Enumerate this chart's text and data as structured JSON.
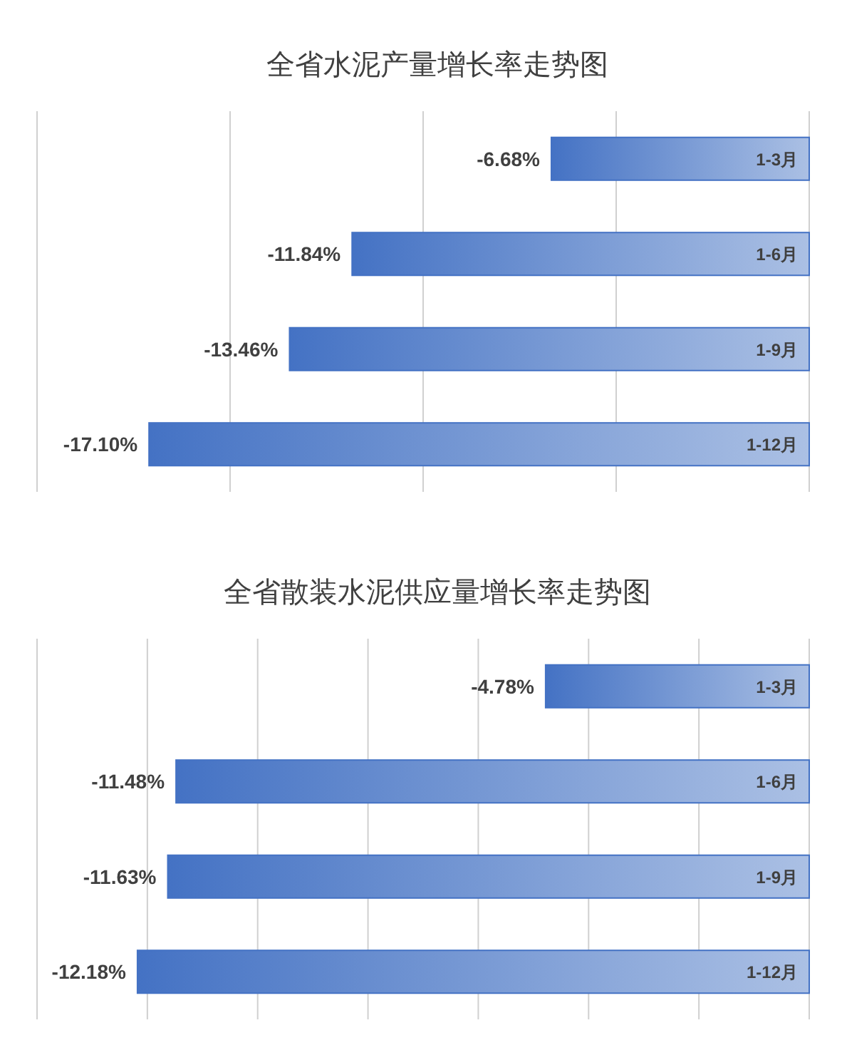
{
  "chart_data": [
    {
      "type": "bar",
      "orientation": "horizontal",
      "title": "全省水泥产量增长率走势图",
      "categories": [
        "1-3月",
        "1-6月",
        "1-9月",
        "1-12月"
      ],
      "values": [
        -6.68,
        -11.84,
        -13.46,
        -17.1
      ],
      "value_labels": [
        "-6.68%",
        "-11.84%",
        "-13.46%",
        "-17.10%"
      ],
      "color": "#4472c4",
      "xlim": [
        -20,
        0
      ],
      "xticks": [
        {
          "value": -20,
          "label": null
        },
        {
          "value": -15,
          "label": null
        },
        {
          "value": -10,
          "label": null
        },
        {
          "value": -5,
          "label": null
        },
        {
          "value": 0,
          "label": null
        }
      ],
      "grid": "x",
      "tick_labels": "y"
    },
    {
      "type": "bar",
      "orientation": "horizontal",
      "title": "全省散装水泥供应量增长率走势图",
      "categories": [
        "1-3月",
        "1-6月",
        "1-9月",
        "1-12月"
      ],
      "values": [
        -4.78,
        -11.48,
        -11.63,
        -12.18
      ],
      "value_labels": [
        "-4.78%",
        "-11.48%",
        "-11.63%",
        "-12.18%"
      ],
      "color": "#4472c4",
      "xlim": [
        -14,
        0
      ],
      "xticks": [
        {
          "value": -14,
          "label": null
        },
        {
          "value": -12,
          "label": null
        },
        {
          "value": -10,
          "label": null
        },
        {
          "value": -8,
          "label": null
        },
        {
          "value": -6,
          "label": null
        },
        {
          "value": -4,
          "label": null
        },
        {
          "value": -2,
          "label": null
        },
        {
          "value": 0,
          "label": null
        }
      ],
      "grid": "x",
      "tick_labels": "y"
    }
  ]
}
